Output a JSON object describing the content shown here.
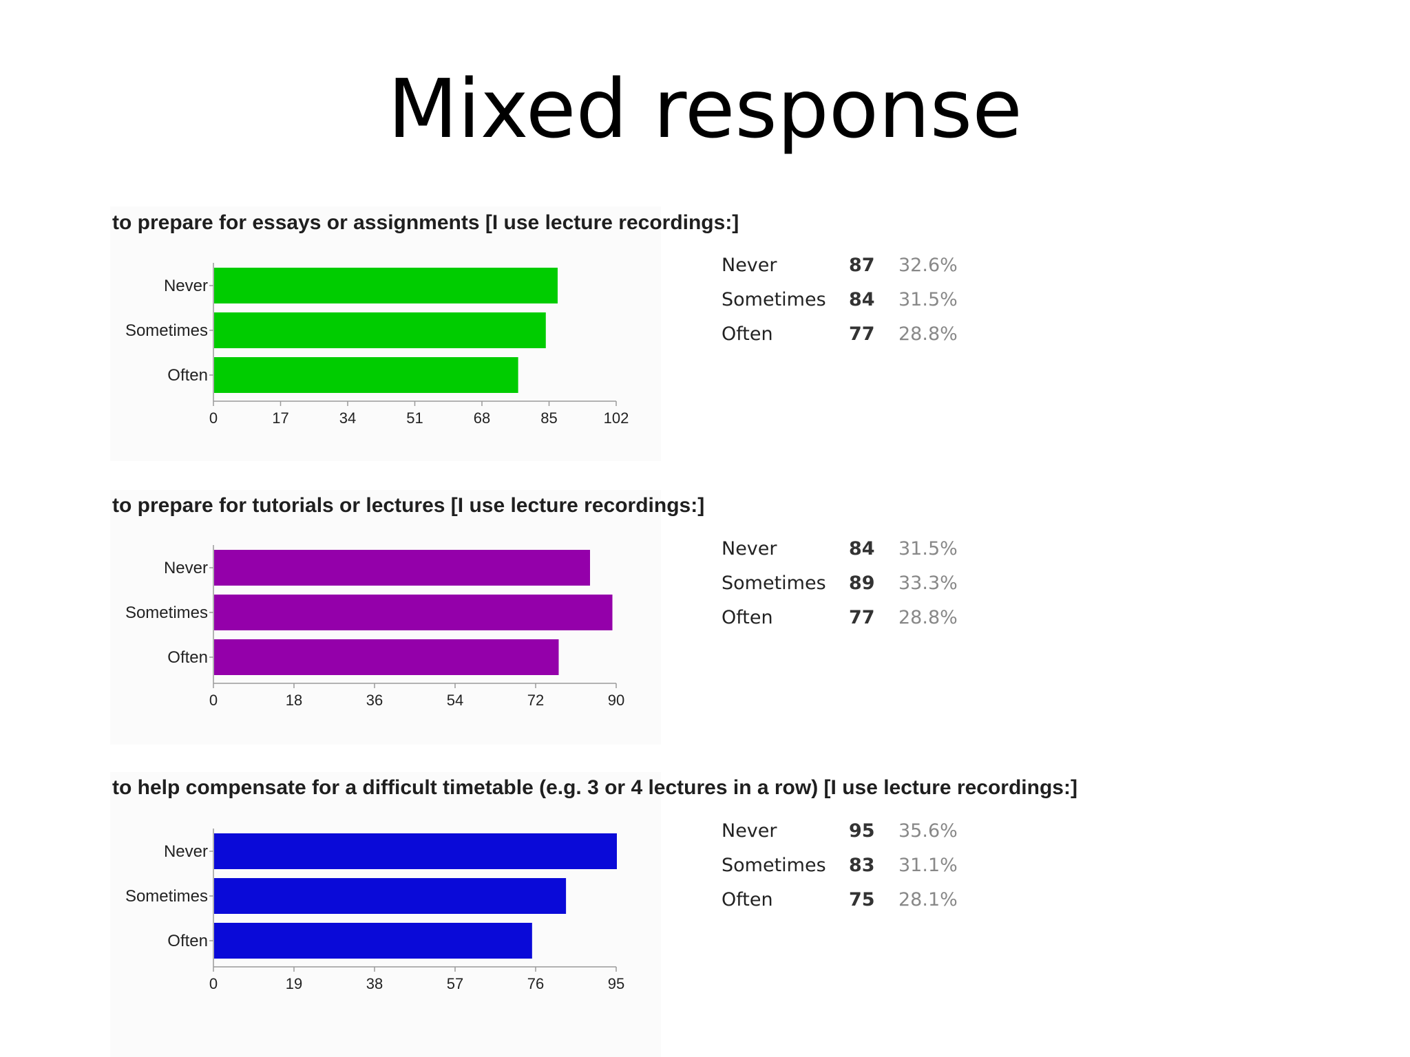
{
  "slide": {
    "title": "Mixed response"
  },
  "chart_data": [
    {
      "type": "bar",
      "orientation": "horizontal",
      "title": "to prepare for essays or assignments [I use lecture recordings:]",
      "categories": [
        "Never",
        "Sometimes",
        "Often"
      ],
      "values": [
        87,
        84,
        77
      ],
      "xlim": [
        0,
        102
      ],
      "xticks": [
        "0",
        "17",
        "34",
        "51",
        "68",
        "85",
        "102"
      ],
      "color": "#00cc00",
      "summary": [
        {
          "label": "Never",
          "count": "87",
          "percent": "32.6%"
        },
        {
          "label": "Sometimes",
          "count": "84",
          "percent": "31.5%"
        },
        {
          "label": "Often",
          "count": "77",
          "percent": "28.8%"
        }
      ]
    },
    {
      "type": "bar",
      "orientation": "horizontal",
      "title": "to prepare for tutorials or lectures [I use lecture recordings:]",
      "categories": [
        "Never",
        "Sometimes",
        "Often"
      ],
      "values": [
        84,
        89,
        77
      ],
      "xlim": [
        0,
        90
      ],
      "xticks": [
        "0",
        "18",
        "36",
        "54",
        "72",
        "90"
      ],
      "color": "#9400aa",
      "summary": [
        {
          "label": "Never",
          "count": "84",
          "percent": "31.5%"
        },
        {
          "label": "Sometimes",
          "count": "89",
          "percent": "33.3%"
        },
        {
          "label": "Often",
          "count": "77",
          "percent": "28.8%"
        }
      ]
    },
    {
      "type": "bar",
      "orientation": "horizontal",
      "title": "to help compensate for a difficult timetable (e.g. 3 or 4 lectures in a row) [I use lecture recordings:]",
      "categories": [
        "Never",
        "Sometimes",
        "Often"
      ],
      "values": [
        95,
        83,
        75
      ],
      "xlim": [
        0,
        95
      ],
      "xticks": [
        "0",
        "19",
        "38",
        "57",
        "76",
        "95"
      ],
      "color": "#0a0ad8",
      "summary": [
        {
          "label": "Never",
          "count": "95",
          "percent": "35.6%"
        },
        {
          "label": "Sometimes",
          "count": "83",
          "percent": "31.1%"
        },
        {
          "label": "Often",
          "count": "75",
          "percent": "28.1%"
        }
      ]
    }
  ]
}
